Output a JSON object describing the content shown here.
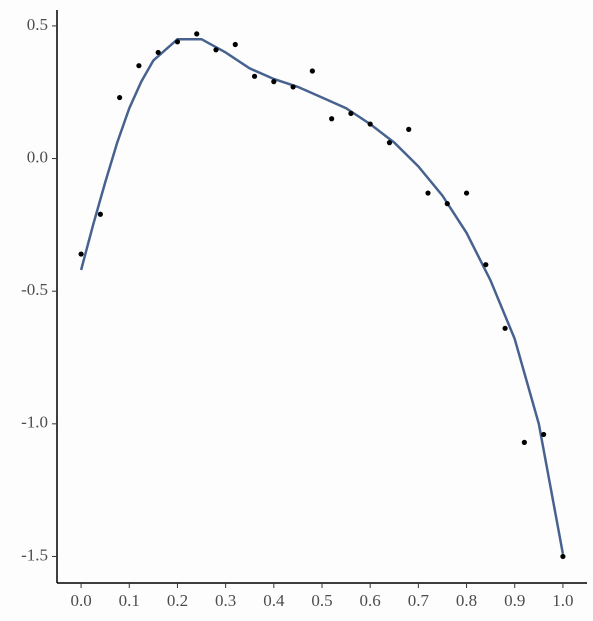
{
  "chart_data": {
    "type": "scatter",
    "x": [
      0.0,
      0.04,
      0.08,
      0.12,
      0.16,
      0.2,
      0.24,
      0.28,
      0.32,
      0.36,
      0.4,
      0.44,
      0.48,
      0.52,
      0.56,
      0.6,
      0.64,
      0.68,
      0.72,
      0.76,
      0.8,
      0.84,
      0.88,
      0.92,
      0.96,
      1.0
    ],
    "values": [
      -0.36,
      -0.21,
      0.23,
      0.35,
      0.4,
      0.44,
      0.47,
      0.41,
      0.43,
      0.31,
      0.29,
      0.27,
      0.33,
      0.15,
      0.17,
      0.13,
      0.06,
      0.11,
      -0.13,
      -0.17,
      -0.13,
      -0.4,
      -0.64,
      -1.07,
      -1.04,
      -1.5
    ],
    "color": "#000000",
    "fit": {
      "color": "#48628f",
      "x": [
        0.0,
        0.025,
        0.05,
        0.075,
        0.1,
        0.125,
        0.15,
        0.2,
        0.25,
        0.3,
        0.35,
        0.4,
        0.45,
        0.5,
        0.55,
        0.6,
        0.65,
        0.7,
        0.75,
        0.8,
        0.85,
        0.9,
        0.95,
        1.0
      ],
      "values": [
        -0.42,
        -0.25,
        -0.09,
        0.06,
        0.19,
        0.29,
        0.37,
        0.45,
        0.45,
        0.4,
        0.34,
        0.3,
        0.27,
        0.23,
        0.19,
        0.13,
        0.06,
        -0.03,
        -0.14,
        -0.28,
        -0.46,
        -0.68,
        -1.0,
        -1.49
      ]
    },
    "xlim": [
      -0.05,
      1.05
    ],
    "ylim": [
      -1.6,
      0.56
    ],
    "xticks": [
      {
        "value": 0,
        "label": "0.0"
      },
      0.1,
      0.2,
      0.3,
      0.4,
      0.5,
      0.6,
      0.7,
      0.8,
      0.9,
      {
        "value": 1,
        "label": "1.0"
      }
    ],
    "yticks": [
      0.5,
      {
        "value": 0,
        "label": "0.0"
      },
      -0.5,
      {
        "value": -1,
        "label": "-1.0"
      },
      -1.5
    ],
    "grid": false
  }
}
